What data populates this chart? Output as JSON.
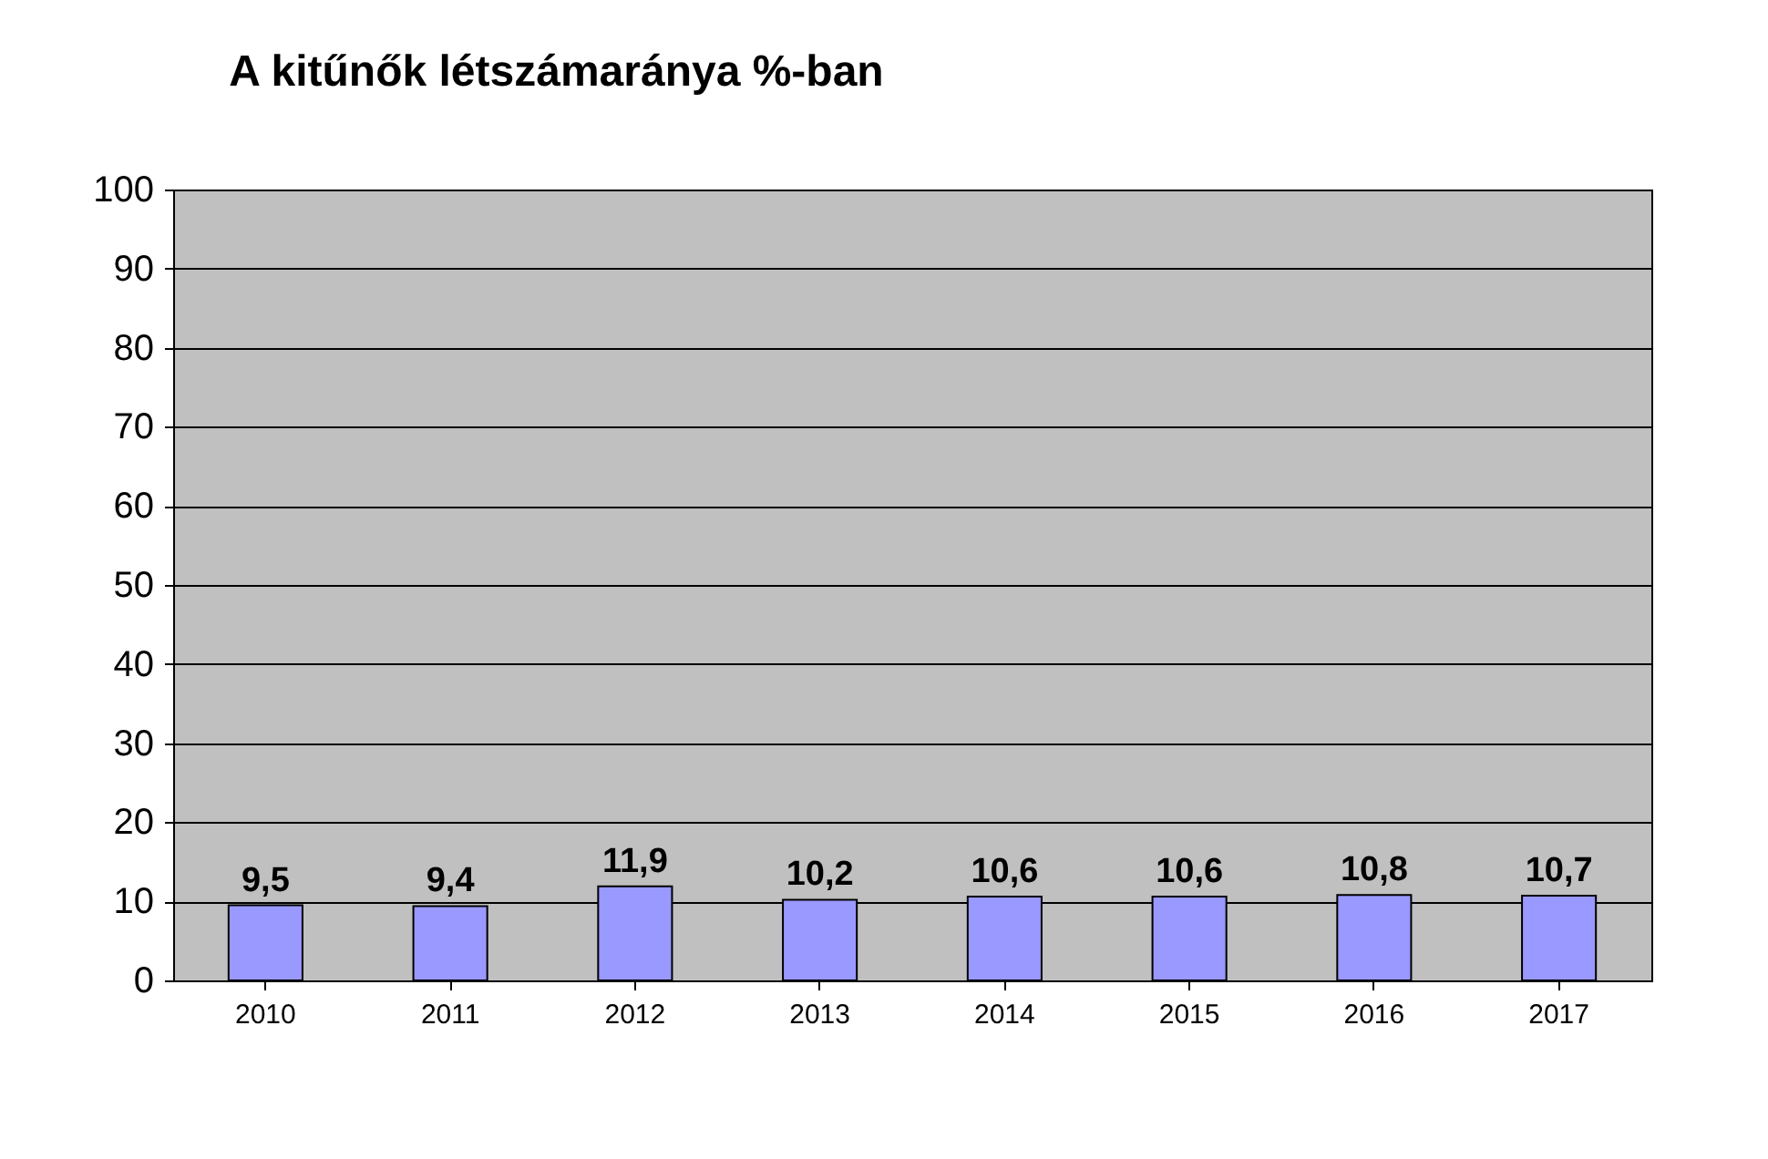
{
  "chart_data": {
    "type": "bar",
    "title": "A kitűnők létszámaránya %-ban",
    "categories": [
      "2010",
      "2011",
      "2012",
      "2013",
      "2014",
      "2015",
      "2016",
      "2017"
    ],
    "values": [
      9.5,
      9.4,
      11.9,
      10.2,
      10.6,
      10.6,
      10.8,
      10.7
    ],
    "value_labels": [
      "9,5",
      "9,4",
      "11,9",
      "10,2",
      "10,6",
      "10,6",
      "10,8",
      "10,7"
    ],
    "color": "#9999ff",
    "ylim": [
      0,
      100
    ],
    "yticks": [
      0,
      10,
      20,
      30,
      40,
      50,
      60,
      70,
      80,
      90,
      100
    ],
    "grid": "y"
  }
}
